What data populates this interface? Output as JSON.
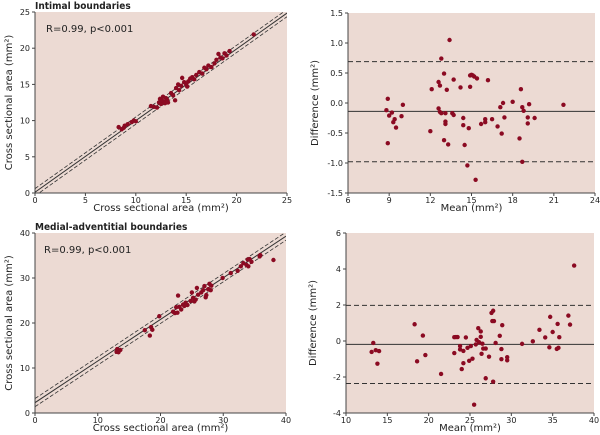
{
  "colors": {
    "background": "#ecdad3",
    "point": "#8b0a22",
    "line": "#333333"
  },
  "chart_data": [
    {
      "type": "scatter",
      "title": "Intimal boundaries",
      "annotation": "R=0.99, p<0.001",
      "xlabel": "Cross sectional area (mm²)",
      "ylabel": "Cross sectional area (mm²)",
      "xlim": [
        0,
        25
      ],
      "ylim": [
        0,
        25
      ],
      "xticks": [
        0,
        5,
        10,
        15,
        20,
        25
      ],
      "yticks": [
        0,
        5,
        10,
        15,
        20,
        25
      ],
      "lines": {
        "regression": [
          0.1,
          0.99
        ],
        "ci_offset": 0.5
      },
      "points": [
        [
          8.3,
          9.1
        ],
        [
          8.6,
          8.8
        ],
        [
          8.8,
          9.0
        ],
        [
          8.9,
          9.3
        ],
        [
          9.2,
          9.5
        ],
        [
          9.6,
          9.8
        ],
        [
          9.8,
          10.0
        ],
        [
          10.0,
          9.9
        ],
        [
          11.5,
          12.0
        ],
        [
          11.8,
          11.9
        ],
        [
          12.1,
          11.8
        ],
        [
          12.3,
          12.5
        ],
        [
          12.4,
          13.0
        ],
        [
          12.5,
          12.3
        ],
        [
          12.6,
          12.8
        ],
        [
          12.7,
          13.3
        ],
        [
          12.8,
          12.6
        ],
        [
          12.9,
          12.4
        ],
        [
          13.0,
          13.1
        ],
        [
          13.1,
          12.9
        ],
        [
          13.2,
          12.5
        ],
        [
          13.5,
          13.8
        ],
        [
          13.7,
          13.5
        ],
        [
          13.9,
          12.8
        ],
        [
          14.0,
          14.5
        ],
        [
          14.2,
          15.0
        ],
        [
          14.3,
          14.2
        ],
        [
          14.5,
          14.8
        ],
        [
          14.6,
          15.9
        ],
        [
          14.8,
          15.3
        ],
        [
          15.0,
          15.0
        ],
        [
          15.1,
          14.7
        ],
        [
          15.2,
          15.4
        ],
        [
          15.4,
          15.8
        ],
        [
          15.6,
          16.0
        ],
        [
          15.8,
          15.7
        ],
        [
          16.0,
          16.3
        ],
        [
          16.3,
          16.7
        ],
        [
          16.6,
          16.5
        ],
        [
          16.8,
          17.3
        ],
        [
          17.0,
          17.1
        ],
        [
          17.2,
          17.6
        ],
        [
          17.5,
          17.4
        ],
        [
          17.8,
          17.9
        ],
        [
          18.0,
          18.4
        ],
        [
          18.2,
          19.2
        ],
        [
          18.4,
          18.7
        ],
        [
          18.6,
          18.6
        ],
        [
          18.8,
          19.3
        ],
        [
          19.0,
          19.0
        ],
        [
          19.3,
          19.6
        ],
        [
          21.7,
          21.9
        ]
      ]
    },
    {
      "type": "scatter",
      "title": "",
      "xlabel": "Mean (mm²)",
      "ylabel": "Difference (mm²)",
      "xlim": [
        6,
        24
      ],
      "ylim": [
        -1.5,
        1.5
      ],
      "xticks": [
        6,
        9,
        12,
        15,
        18,
        21,
        24
      ],
      "yticks": [
        -1.5,
        -1.0,
        -0.5,
        0.0,
        0.5,
        1.0,
        1.5
      ],
      "ytick_labels": [
        "-1.5",
        "-1.0",
        "-0.5",
        "0.0",
        "0.5",
        "1.0",
        "1.5"
      ],
      "lines": {
        "mean_difference": -0.14,
        "upper_limit": 0.69,
        "lower_limit": -0.98
      },
      "points": [
        [
          8.8,
          -0.12
        ],
        [
          8.9,
          0.07
        ],
        [
          9.0,
          -0.21
        ],
        [
          8.9,
          -0.67
        ],
        [
          9.2,
          -0.16
        ],
        [
          9.3,
          -0.32
        ],
        [
          9.4,
          -0.27
        ],
        [
          9.5,
          -0.41
        ],
        [
          9.9,
          -0.22
        ],
        [
          10.0,
          -0.03
        ],
        [
          12.0,
          -0.47
        ],
        [
          12.1,
          0.23
        ],
        [
          12.6,
          0.35
        ],
        [
          12.6,
          -0.09
        ],
        [
          12.7,
          0.29
        ],
        [
          12.7,
          -0.15
        ],
        [
          12.8,
          0.74
        ],
        [
          12.8,
          -0.17
        ],
        [
          13.0,
          -0.62
        ],
        [
          13.0,
          0.49
        ],
        [
          13.1,
          -0.35
        ],
        [
          13.1,
          -0.31
        ],
        [
          13.1,
          -0.17
        ],
        [
          13.2,
          0.22
        ],
        [
          13.3,
          -0.69
        ],
        [
          13.4,
          1.05
        ],
        [
          13.6,
          -0.17
        ],
        [
          13.7,
          -0.2
        ],
        [
          13.7,
          0.39
        ],
        [
          14.2,
          0.26
        ],
        [
          14.4,
          -0.25
        ],
        [
          14.4,
          -0.37
        ],
        [
          14.5,
          -0.7
        ],
        [
          14.7,
          -1.04
        ],
        [
          14.8,
          -0.42
        ],
        [
          14.9,
          0.46
        ],
        [
          14.9,
          0.27
        ],
        [
          15.0,
          0.47
        ],
        [
          15.1,
          0.46
        ],
        [
          15.2,
          0.44
        ],
        [
          15.3,
          -1.28
        ],
        [
          15.4,
          0.41
        ],
        [
          15.7,
          -0.35
        ],
        [
          16.0,
          -0.27
        ],
        [
          16.0,
          -0.32
        ],
        [
          16.2,
          0.38
        ],
        [
          16.5,
          -0.27
        ],
        [
          16.9,
          -0.39
        ],
        [
          17.1,
          -0.07
        ],
        [
          17.2,
          -0.51
        ],
        [
          17.3,
          0.0
        ],
        [
          17.4,
          -0.24
        ],
        [
          18.0,
          0.02
        ],
        [
          18.5,
          -0.59
        ],
        [
          18.6,
          0.23
        ],
        [
          18.7,
          -0.98
        ],
        [
          18.7,
          -0.07
        ],
        [
          18.8,
          -0.13
        ],
        [
          19.1,
          -0.24
        ],
        [
          19.1,
          -0.34
        ],
        [
          19.2,
          -0.02
        ],
        [
          19.6,
          -0.25
        ],
        [
          21.7,
          -0.03
        ]
      ]
    },
    {
      "type": "scatter",
      "title": "Medial-adventitial boundaries",
      "annotation": "R=0.99, p<0.001",
      "xlabel": "Cross sectional area (mm²)",
      "ylabel": "Cross sectional area (mm²)",
      "xlim": [
        0,
        40
      ],
      "ylim": [
        0,
        40
      ],
      "xticks": [
        0,
        10,
        20,
        30,
        40
      ],
      "yticks": [
        0,
        10,
        20,
        30,
        40
      ],
      "lines": {
        "regression": [
          2.3,
          0.925
        ],
        "ci_offset": 0.9
      },
      "points": [
        [
          13.0,
          13.6
        ],
        [
          13.1,
          14.2
        ],
        [
          13.3,
          13.5
        ],
        [
          13.6,
          14.0
        ],
        [
          17.5,
          18.4
        ],
        [
          18.3,
          17.2
        ],
        [
          18.5,
          19.1
        ],
        [
          18.7,
          18.5
        ],
        [
          19.8,
          21.5
        ],
        [
          22.0,
          22.5
        ],
        [
          22.3,
          22.2
        ],
        [
          22.5,
          23.5
        ],
        [
          22.7,
          22.3
        ],
        [
          22.8,
          26.1
        ],
        [
          23.0,
          23.6
        ],
        [
          23.3,
          23.0
        ],
        [
          23.6,
          24.1
        ],
        [
          23.8,
          23.8
        ],
        [
          24.0,
          24.5
        ],
        [
          24.3,
          24.0
        ],
        [
          24.8,
          24.9
        ],
        [
          25.0,
          26.8
        ],
        [
          25.2,
          25.6
        ],
        [
          25.4,
          24.8
        ],
        [
          25.6,
          25.2
        ],
        [
          25.8,
          27.8
        ],
        [
          26.0,
          26.3
        ],
        [
          26.5,
          26.8
        ],
        [
          26.8,
          27.3
        ],
        [
          27.0,
          28.2
        ],
        [
          27.2,
          25.7
        ],
        [
          27.3,
          26.2
        ],
        [
          27.6,
          27.5
        ],
        [
          27.8,
          28.7
        ],
        [
          28.0,
          27.3
        ],
        [
          28.1,
          28.3
        ],
        [
          29.9,
          30.0
        ],
        [
          31.2,
          31.1
        ],
        [
          32.3,
          31.6
        ],
        [
          32.8,
          32.6
        ],
        [
          33.2,
          33.3
        ],
        [
          33.7,
          32.9
        ],
        [
          33.9,
          34.1
        ],
        [
          34.0,
          32.6
        ],
        [
          34.2,
          34.2
        ],
        [
          34.5,
          33.6
        ],
        [
          35.8,
          34.8
        ],
        [
          35.9,
          35.1
        ],
        [
          38.0,
          34.0
        ]
      ]
    },
    {
      "type": "scatter",
      "title": "",
      "xlabel": "Mean (mm²)",
      "ylabel": "Difference (mm²)",
      "xlim": [
        10,
        40
      ],
      "ylim": [
        -4,
        6
      ],
      "xticks": [
        10,
        15,
        20,
        25,
        30,
        35,
        40
      ],
      "yticks": [
        -4,
        -2,
        0,
        2,
        4,
        6
      ],
      "ytick_labels": [
        "-4",
        "-2",
        "0",
        "2",
        "4",
        "6"
      ],
      "lines": {
        "mean_difference": -0.19,
        "upper_limit": 1.98,
        "lower_limit": -2.36
      },
      "points": [
        [
          13.1,
          -0.61
        ],
        [
          13.3,
          -0.11
        ],
        [
          13.6,
          -0.51
        ],
        [
          13.8,
          -1.26
        ],
        [
          14.0,
          -0.56
        ],
        [
          18.3,
          0.93
        ],
        [
          18.6,
          -1.13
        ],
        [
          19.3,
          0.3
        ],
        [
          19.6,
          -0.78
        ],
        [
          21.5,
          -1.83
        ],
        [
          23.1,
          0.21
        ],
        [
          23.1,
          -0.67
        ],
        [
          23.3,
          0.22
        ],
        [
          23.5,
          0.22
        ],
        [
          23.8,
          -0.28
        ],
        [
          23.8,
          -0.47
        ],
        [
          24.0,
          -1.56
        ],
        [
          24.2,
          -0.55
        ],
        [
          24.2,
          -1.23
        ],
        [
          24.5,
          0.2
        ],
        [
          24.7,
          -0.38
        ],
        [
          24.9,
          -1.1
        ],
        [
          25.1,
          -0.28
        ],
        [
          25.3,
          -0.98
        ],
        [
          25.5,
          -3.54
        ],
        [
          25.7,
          -0.19
        ],
        [
          25.8,
          0.06
        ],
        [
          26.0,
          0.71
        ],
        [
          26.1,
          -0.07
        ],
        [
          26.3,
          0.53
        ],
        [
          26.3,
          0.23
        ],
        [
          26.4,
          -0.71
        ],
        [
          26.5,
          -0.15
        ],
        [
          26.6,
          -0.42
        ],
        [
          26.9,
          -0.42
        ],
        [
          26.9,
          -2.07
        ],
        [
          27.3,
          -0.87
        ],
        [
          27.6,
          1.56
        ],
        [
          27.7,
          1.11
        ],
        [
          27.8,
          -2.26
        ],
        [
          27.8,
          1.68
        ],
        [
          27.9,
          1.11
        ],
        [
          28.1,
          -0.11
        ],
        [
          28.6,
          0.29
        ],
        [
          28.8,
          -1.01
        ],
        [
          28.8,
          -0.45
        ],
        [
          28.9,
          0.88
        ],
        [
          29.5,
          -0.9
        ],
        [
          29.5,
          -1.07
        ],
        [
          31.3,
          -0.16
        ],
        [
          32.6,
          -0.02
        ],
        [
          33.4,
          0.62
        ],
        [
          34.1,
          0.2
        ],
        [
          34.6,
          -0.35
        ],
        [
          34.7,
          1.34
        ],
        [
          35.0,
          0.5
        ],
        [
          35.5,
          -0.44
        ],
        [
          35.6,
          0.95
        ],
        [
          35.7,
          -0.38
        ],
        [
          35.8,
          0.21
        ],
        [
          36.9,
          1.41
        ],
        [
          37.1,
          0.91
        ],
        [
          37.6,
          4.19
        ]
      ]
    }
  ]
}
